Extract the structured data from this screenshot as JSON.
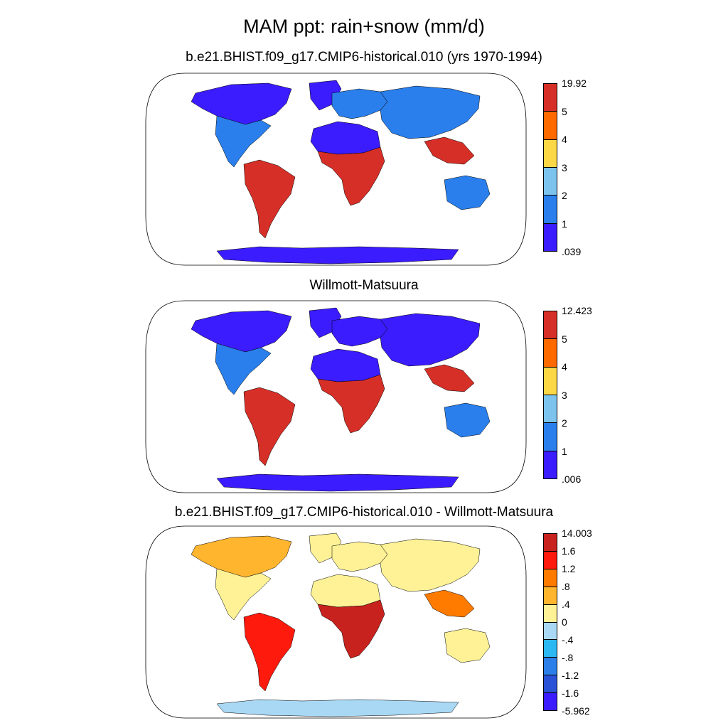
{
  "main_title": "MAM ppt: rain+snow (mm/d)",
  "panels": [
    {
      "title": "b.e21.BHIST.f09_g17.CMIP6-historical.010 (yrs 1970-1994)",
      "colorbar": {
        "labels": [
          "19.92",
          "5",
          "4",
          "3",
          "2",
          "1",
          ".039"
        ],
        "colors": [
          "#d62f27",
          "#ff6a00",
          "#fcd746",
          "#7cc3ee",
          "#2a7fec",
          "#3b1cff"
        ]
      }
    },
    {
      "title": "Willmott-Matsuura",
      "colorbar": {
        "labels": [
          "12.423",
          "5",
          "4",
          "3",
          "2",
          "1",
          ".006"
        ],
        "colors": [
          "#d62f27",
          "#ff6a00",
          "#fcd746",
          "#7cc3ee",
          "#2a7fec",
          "#3b1cff"
        ]
      }
    },
    {
      "title": "b.e21.BHIST.f09_g17.CMIP6-historical.010 - Willmott-Matsuura",
      "colorbar": {
        "labels": [
          "14.003",
          "1.6",
          "1.2",
          ".8",
          ".4",
          "0",
          "-.4",
          "-.8",
          "-1.2",
          "-1.6",
          "-5.962"
        ],
        "colors": [
          "#c8221e",
          "#ff1a0e",
          "#ff7b00",
          "#ffb52e",
          "#fff296",
          "#a8d8f4",
          "#2cb8f3",
          "#2c7fe8",
          "#2a52d6",
          "#3b1cff"
        ]
      }
    }
  ],
  "region_colors": {
    "p1": {
      "na_north": "#3b1cff",
      "na_south": "#2a7fec",
      "sa": "#d62f27",
      "africa_north": "#3b1cff",
      "africa_central": "#d62f27",
      "europe": "#2a7fec",
      "asia": "#2a7fec",
      "asia_se": "#d62f27",
      "australia": "#2a7fec",
      "antarctica": "#3b1cff",
      "greenland": "#3b1cff"
    },
    "p2": {
      "na_north": "#3b1cff",
      "na_south": "#2a7fec",
      "sa": "#d62f27",
      "africa_north": "#3b1cff",
      "africa_central": "#d62f27",
      "europe": "#3b1cff",
      "asia": "#3b1cff",
      "asia_se": "#d62f27",
      "australia": "#2a7fec",
      "antarctica": "#3b1cff",
      "greenland": "#3b1cff"
    },
    "p3": {
      "na_north": "#ffb52e",
      "na_south": "#fff296",
      "sa": "#ff1a0e",
      "africa_north": "#fff296",
      "africa_central": "#c8221e",
      "europe": "#fff296",
      "asia": "#fff296",
      "asia_se": "#ff7b00",
      "australia": "#fff296",
      "antarctica": "#a8d8f4",
      "greenland": "#fff296"
    }
  }
}
